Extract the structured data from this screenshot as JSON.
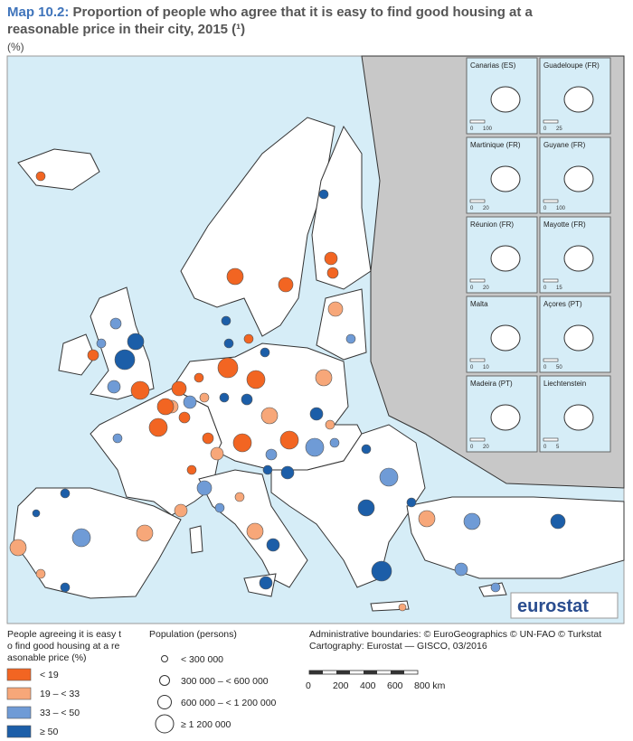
{
  "header": {
    "map_label": "Map 10.2:",
    "title": "Proportion of people who agree that it is easy to find good housing at a reasonable price in their city, 2015",
    "footnote": "(¹)",
    "unit": "(%)"
  },
  "insets": [
    {
      "label": "Canarias (ES)",
      "scale": [
        "0",
        "100"
      ]
    },
    {
      "label": "Guadeloupe (FR)",
      "scale": [
        "0",
        "25"
      ]
    },
    {
      "label": "Martinique (FR)",
      "scale": [
        "0",
        "20"
      ]
    },
    {
      "label": "Guyane (FR)",
      "scale": [
        "0",
        "100"
      ]
    },
    {
      "label": "Réunion (FR)",
      "scale": [
        "0",
        "20"
      ]
    },
    {
      "label": "Mayotte (FR)",
      "scale": [
        "0",
        "15"
      ]
    },
    {
      "label": "Malta",
      "scale": [
        "0",
        "10"
      ]
    },
    {
      "label": "Açores (PT)",
      "scale": [
        "0",
        "50"
      ]
    },
    {
      "label": "Madeira (PT)",
      "scale": [
        "0",
        "20"
      ]
    },
    {
      "label": "Liechtenstein",
      "scale": [
        "0",
        "5"
      ]
    }
  ],
  "logo": "eurostat",
  "legend": {
    "share": {
      "title": "People agreeing it is easy to find good housing at a reasonable price (%)",
      "classes": [
        {
          "label": "< 19",
          "color": "#f26522"
        },
        {
          "label": "19 – < 33",
          "color": "#f7a779"
        },
        {
          "label": "33 – < 50",
          "color": "#6f9bd6"
        },
        {
          "label": "≥ 50",
          "color": "#1c5ea8"
        }
      ]
    },
    "population": {
      "title": "Population (persons)",
      "classes": [
        "< 300 000",
        "300 000 – < 600 000",
        "600 000 – < 1 200 000",
        "≥ 1 200 000"
      ]
    }
  },
  "credits": [
    "Administrative boundaries: © EuroGeographics © UN-FAO © Turkstat",
    "Cartography: Eurostat — GISCO, 03/2016"
  ],
  "scale_bar": [
    "0",
    "200",
    "400",
    "600",
    "800 km"
  ]
}
